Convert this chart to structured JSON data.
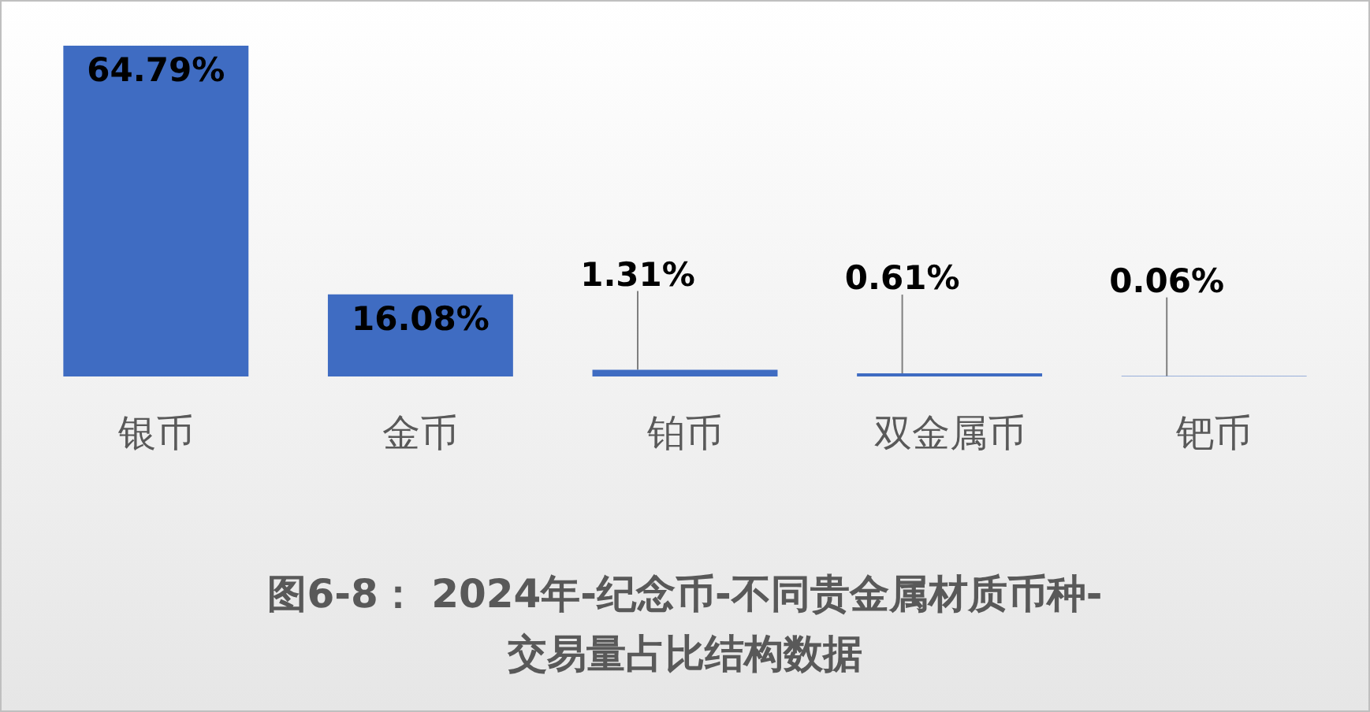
{
  "chart_data": {
    "type": "bar",
    "title": "图6-8： 2024年-纪念币-不同贵金属材质币种-交易量占比结构数据",
    "categories": [
      "银币",
      "金币",
      "铂币",
      "双金属币",
      "钯币"
    ],
    "values": [
      64.79,
      16.08,
      1.31,
      0.61,
      0.06
    ],
    "value_labels": [
      "64.79%",
      "16.08%",
      "1.31%",
      "0.61%",
      "0.06%"
    ],
    "color": "#3f6cc2"
  }
}
